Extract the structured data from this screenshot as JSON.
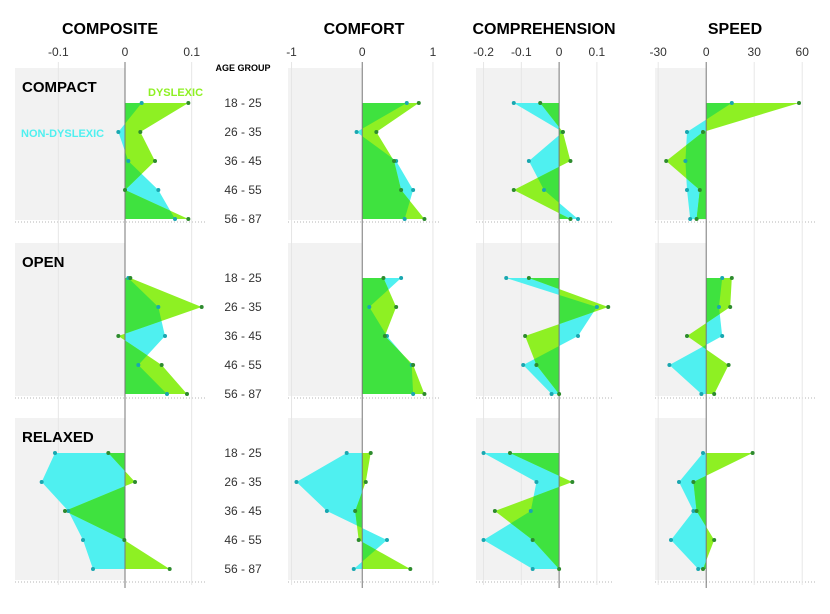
{
  "colors": {
    "dyslexic": "#8ef023",
    "dyslexic_dot": "#2e8b2e",
    "non_dyslexic": "#4ff0f0",
    "non_dyslexic_dot": "#1aa7b0",
    "overlap": "#3fe23f",
    "shade": "#f2f2f2"
  },
  "legend": {
    "dyslexic": "DYSLEXIC",
    "non_dyslexic": "NON-DYSLEXIC"
  },
  "age_header": "AGE GROUP",
  "chart_data": {
    "type": "area",
    "age_groups": [
      "18 - 25",
      "26 - 35",
      "36 - 45",
      "46 - 55",
      "56 - 87"
    ],
    "layouts": [
      "COMPACT",
      "OPEN",
      "RELAXED"
    ],
    "panels": [
      {
        "title": "COMPOSITE",
        "xlim": [
          -0.165,
          0.12
        ],
        "ticks": [
          -0.1,
          0,
          0.1
        ],
        "tick_labels": [
          "-0.1",
          "0",
          "0.1"
        ],
        "series": {
          "COMPACT": {
            "dyslexic": [
              0.095,
              0.023,
              0.045,
              0.0,
              0.095
            ],
            "non_dyslexic": [
              0.025,
              -0.01,
              0.005,
              0.05,
              0.075
            ]
          },
          "OPEN": {
            "dyslexic": [
              0.008,
              0.115,
              -0.01,
              0.055,
              0.093
            ],
            "non_dyslexic": [
              0.005,
              0.05,
              0.06,
              0.02,
              0.063
            ]
          },
          "RELAXED": {
            "dyslexic": [
              -0.025,
              0.015,
              -0.09,
              -0.001,
              0.067
            ],
            "non_dyslexic": [
              -0.105,
              -0.125,
              -0.085,
              -0.063,
              -0.048
            ]
          }
        }
      },
      {
        "title": "COMFORT",
        "xlim": [
          -1.05,
          1.1
        ],
        "ticks": [
          -1,
          0,
          1
        ],
        "tick_labels": [
          "-1",
          "0",
          "1"
        ],
        "series": {
          "COMPACT": {
            "dyslexic": [
              0.8,
              0.2,
              0.45,
              0.55,
              0.88
            ],
            "non_dyslexic": [
              0.63,
              -0.08,
              0.48,
              0.72,
              0.6
            ]
          },
          "OPEN": {
            "dyslexic": [
              0.3,
              0.48,
              0.32,
              0.72,
              0.88
            ],
            "non_dyslexic": [
              0.55,
              0.1,
              0.35,
              0.7,
              0.72
            ]
          },
          "RELAXED": {
            "dyslexic": [
              0.12,
              0.05,
              -0.1,
              -0.05,
              0.68
            ],
            "non_dyslexic": [
              -0.22,
              -0.93,
              -0.5,
              0.35,
              -0.12
            ]
          }
        }
      },
      {
        "title": "COMPREHENSION",
        "xlim": [
          -0.22,
          0.14
        ],
        "ticks": [
          -0.2,
          -0.1,
          0,
          0.1
        ],
        "tick_labels": [
          "-0.2",
          "-0.1",
          "0",
          "0.1"
        ],
        "series": {
          "COMPACT": {
            "dyslexic": [
              -0.05,
              0.01,
              0.03,
              -0.12,
              0.03
            ],
            "non_dyslexic": [
              -0.12,
              0.01,
              -0.08,
              -0.04,
              0.05
            ]
          },
          "OPEN": {
            "dyslexic": [
              -0.08,
              0.13,
              -0.09,
              -0.06,
              0.0
            ],
            "non_dyslexic": [
              -0.14,
              0.1,
              0.05,
              -0.095,
              -0.02
            ]
          },
          "RELAXED": {
            "dyslexic": [
              -0.13,
              0.035,
              -0.17,
              -0.07,
              0.0
            ],
            "non_dyslexic": [
              -0.2,
              -0.06,
              -0.075,
              -0.2,
              -0.07
            ]
          }
        }
      },
      {
        "title": "SPEED",
        "xlim": [
          -32,
          68
        ],
        "ticks": [
          -30,
          0,
          30,
          60
        ],
        "tick_labels": [
          "-30",
          "0",
          "30",
          "60"
        ],
        "series": {
          "COMPACT": {
            "dyslexic": [
              58,
              -2,
              -25,
              -4,
              -6
            ],
            "non_dyslexic": [
              16,
              -12,
              -13,
              -12,
              -10
            ]
          },
          "OPEN": {
            "dyslexic": [
              16,
              15,
              -12,
              14,
              5
            ],
            "non_dyslexic": [
              10,
              8,
              10,
              -23,
              -3
            ]
          },
          "RELAXED": {
            "dyslexic": [
              29,
              -8,
              -6,
              5,
              -2
            ],
            "non_dyslexic": [
              -2,
              -17,
              -8,
              -22,
              -5
            ]
          }
        }
      }
    ]
  }
}
